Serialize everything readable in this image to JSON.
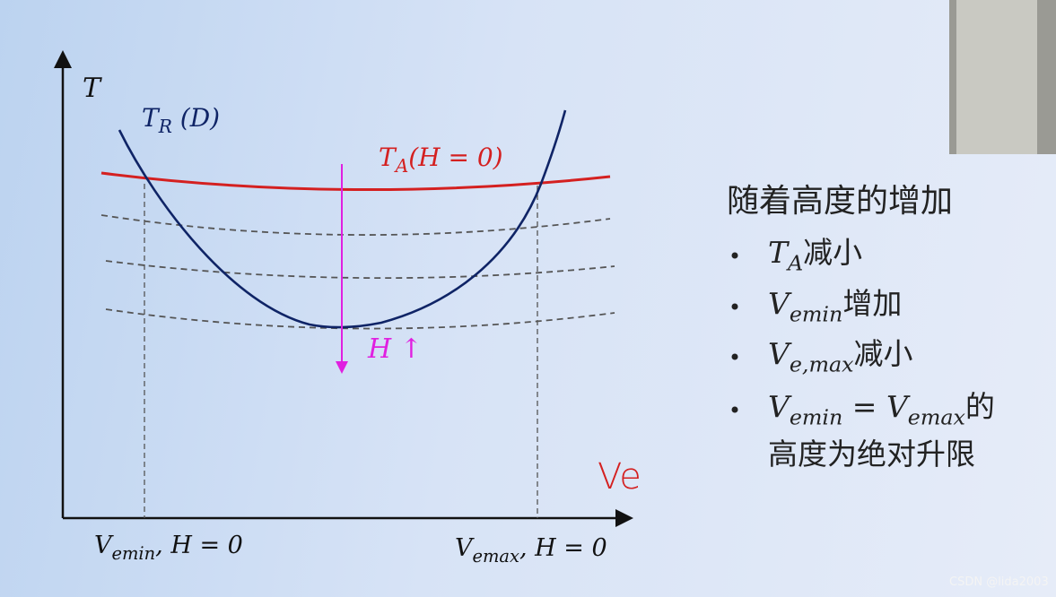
{
  "diagram": {
    "y_axis_label": [
      {
        "text": "T",
        "kind": "math"
      }
    ],
    "x_axis_label": [
      {
        "text": "Ve",
        "kind": "hand"
      }
    ],
    "required_curve_label": [
      {
        "text": "T",
        "kind": "math"
      },
      {
        "text": "R",
        "kind": "sub"
      },
      {
        "text": " (D)",
        "kind": "math"
      }
    ],
    "available_curve_label": [
      {
        "text": "T",
        "kind": "math"
      },
      {
        "text": "A",
        "kind": "sub"
      },
      {
        "text": "(H = 0)",
        "kind": "math"
      }
    ],
    "arrow_label": [
      {
        "text": "H ↑",
        "kind": "math"
      }
    ],
    "x_marks": [
      [
        {
          "text": "V",
          "kind": "math"
        },
        {
          "text": "emin",
          "kind": "sub"
        },
        {
          "text": ", H = 0",
          "kind": "math"
        }
      ],
      [
        {
          "text": "V",
          "kind": "math"
        },
        {
          "text": "emax",
          "kind": "sub"
        },
        {
          "text": ", H = 0",
          "kind": "math"
        }
      ]
    ]
  },
  "notes": {
    "heading": "随着高度的增加",
    "bullets": [
      [
        {
          "text": "T",
          "kind": "math"
        },
        {
          "text": "A",
          "kind": "sub"
        },
        {
          "text": "减小",
          "kind": "plain"
        }
      ],
      [
        {
          "text": "V",
          "kind": "math"
        },
        {
          "text": "emin",
          "kind": "sub"
        },
        {
          "text": "增加",
          "kind": "plain"
        }
      ],
      [
        {
          "text": "V",
          "kind": "math"
        },
        {
          "text": "e,max",
          "kind": "sub"
        },
        {
          "text": "减小",
          "kind": "plain"
        }
      ],
      [
        {
          "text": "V",
          "kind": "math"
        },
        {
          "text": "emin",
          "kind": "sub"
        },
        {
          "text": " = V",
          "kind": "math"
        },
        {
          "text": "emax",
          "kind": "sub"
        },
        {
          "text": "的",
          "kind": "plain"
        }
      ]
    ],
    "continuation": "高度为绝对升限"
  },
  "watermark": "CSDN @lida2003"
}
